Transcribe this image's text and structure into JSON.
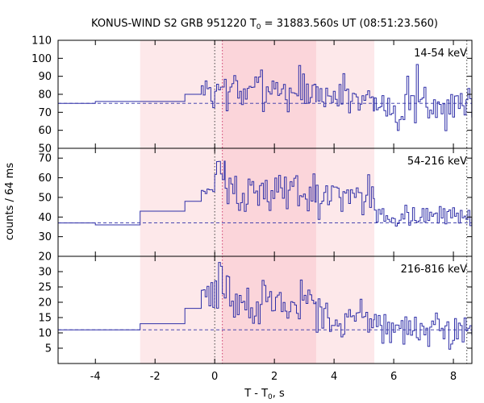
{
  "chart_data": {
    "type": "line",
    "title_main": "KONUS-WIND S2 GRB 951220 T",
    "title_sub": "0",
    "title_rest": " = 31883.560s UT (08:51:23.560)",
    "xlabel_main": "T - T",
    "xlabel_sub": "0",
    "xlabel_rest": ", s",
    "ylabel": "counts / 64 ms",
    "xlim": [
      -5.25,
      8.62
    ],
    "xticks": [
      -4,
      -2,
      0,
      2,
      4,
      6,
      8
    ],
    "xtick_labels": [
      "-4",
      "-2",
      "0",
      "2",
      "4",
      "6",
      "8"
    ],
    "shaded_regions": [
      {
        "x0": -2.5,
        "x1": 5.35,
        "color": "#fde8ea"
      },
      {
        "x0": 0.25,
        "x1": 3.4,
        "color": "#fbd5da"
      }
    ],
    "vlines": [
      0.0,
      0.256,
      8.45
    ],
    "line_color": "#3030a8",
    "panels": [
      {
        "label": "14-54 keV",
        "ylim": [
          50,
          110
        ],
        "yticks": [
          50,
          60,
          70,
          80,
          90,
          100,
          110
        ],
        "ytick_labels": [
          "50",
          "60",
          "70",
          "80",
          "90",
          "100",
          "110"
        ],
        "background": 75,
        "steps": [
          [
            -5.25,
            75
          ],
          [
            -4.0,
            76
          ],
          [
            -2.5,
            76
          ],
          [
            -1.0,
            80
          ],
          [
            -0.45,
            80
          ]
        ],
        "seed": 7,
        "segments": [
          {
            "x0": -0.45,
            "x1": 0.0,
            "mean": 82,
            "amp": 9
          },
          {
            "x0": 0.0,
            "x1": 3.4,
            "mean": 82,
            "amp": 11
          },
          {
            "x0": 3.4,
            "x1": 5.35,
            "mean": 79,
            "amp": 10
          },
          {
            "x0": 5.35,
            "x1": 8.62,
            "mean": 74,
            "amp": 10
          }
        ],
        "clip": [
          58,
          97
        ]
      },
      {
        "label": "54-216 keV",
        "ylim": [
          20,
          75
        ],
        "yticks": [
          20,
          30,
          40,
          50,
          60,
          70
        ],
        "ytick_labels": [
          "20",
          "30",
          "40",
          "50",
          "60",
          "70"
        ],
        "background": 37,
        "steps": [
          [
            -5.25,
            37
          ],
          [
            -4.0,
            36
          ],
          [
            -2.5,
            43
          ],
          [
            -1.0,
            48
          ],
          [
            -0.45,
            48
          ]
        ],
        "seed": 13,
        "segments": [
          {
            "x0": -0.45,
            "x1": 0.0,
            "mean": 54,
            "amp": 5
          },
          {
            "x0": 0.0,
            "x1": 0.35,
            "mean": 63,
            "amp": 6
          },
          {
            "x0": 0.35,
            "x1": 3.4,
            "mean": 53,
            "amp": 7
          },
          {
            "x0": 3.4,
            "x1": 5.35,
            "mean": 51,
            "amp": 8
          },
          {
            "x0": 5.35,
            "x1": 8.62,
            "mean": 40,
            "amp": 5
          }
        ],
        "clip": [
          32,
          71
        ]
      },
      {
        "label": "216-816 keV",
        "ylim": [
          0,
          35
        ],
        "yticks": [
          5,
          10,
          15,
          20,
          25,
          30
        ],
        "ytick_labels": [
          "5",
          "10",
          "15",
          "20",
          "25",
          "30"
        ],
        "background": 11,
        "steps": [
          [
            -5.25,
            11
          ],
          [
            -4.0,
            11
          ],
          [
            -2.5,
            13
          ],
          [
            -1.0,
            18
          ],
          [
            -0.45,
            18
          ]
        ],
        "seed": 29,
        "segments": [
          {
            "x0": -0.45,
            "x1": 0.0,
            "mean": 22,
            "amp": 5
          },
          {
            "x0": 0.0,
            "x1": 0.5,
            "mean": 25,
            "amp": 6
          },
          {
            "x0": 0.5,
            "x1": 3.4,
            "mean": 19,
            "amp": 6
          },
          {
            "x0": 3.4,
            "x1": 5.35,
            "mean": 15,
            "amp": 5
          },
          {
            "x0": 5.35,
            "x1": 8.62,
            "mean": 11,
            "amp": 4
          }
        ],
        "clip": [
          4,
          33
        ]
      }
    ]
  }
}
